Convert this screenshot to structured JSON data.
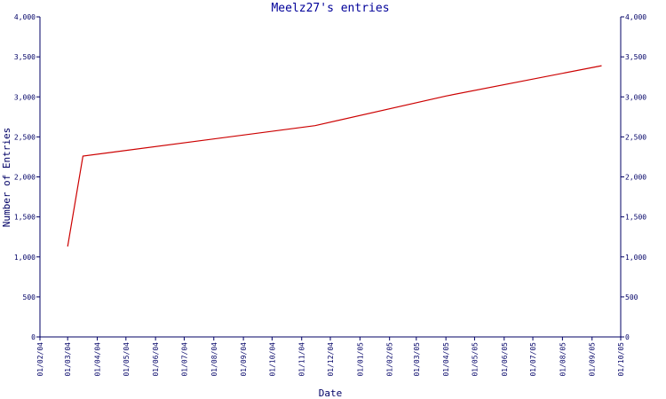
{
  "chart_data": {
    "type": "line",
    "title": "Meelz27's entries",
    "xlabel": "Date",
    "ylabel": "Number of Entries",
    "x_tick_labels": [
      "01/02/04",
      "01/03/04",
      "01/04/04",
      "01/05/04",
      "01/06/04",
      "01/07/04",
      "01/08/04",
      "01/09/04",
      "01/10/04",
      "01/11/04",
      "01/12/04",
      "01/01/05",
      "01/02/05",
      "01/03/05",
      "01/04/05",
      "01/05/05",
      "01/06/05",
      "01/07/05",
      "01/08/05",
      "01/09/05",
      "01/10/05"
    ],
    "y_tick_labels": [
      "0",
      "500",
      "1,000",
      "1,500",
      "2,000",
      "2,500",
      "3,000",
      "3,500",
      "4,000"
    ],
    "ylim": [
      0,
      4000
    ],
    "xlim": [
      "2004-02-01",
      "2005-10-01"
    ],
    "grid": false,
    "right_axis_mirrored": true,
    "series": [
      {
        "color": "#cc0000",
        "points": [
          {
            "x": "2004-03-01",
            "y": 1130
          },
          {
            "x": "2004-03-17",
            "y": 2260
          },
          {
            "x": "2004-11-15",
            "y": 2640
          },
          {
            "x": "2005-04-01",
            "y": 3010
          },
          {
            "x": "2005-09-11",
            "y": 3390
          }
        ]
      }
    ],
    "colors": {
      "axis": "#000066",
      "text": "#000066",
      "title": "#000099",
      "line": "#cc0000"
    }
  }
}
